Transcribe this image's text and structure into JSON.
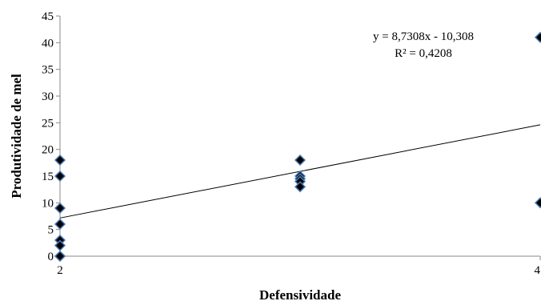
{
  "chart_data": {
    "type": "scatter",
    "title": "",
    "xlabel": "Defensividade",
    "ylabel": "Produtividade de mel",
    "xlim": [
      2,
      4
    ],
    "ylim": [
      0,
      45
    ],
    "x_ticks": [
      2,
      4
    ],
    "x_tick_labels": [
      "2",
      "4"
    ],
    "y_ticks": [
      0,
      5,
      10,
      15,
      20,
      25,
      30,
      35,
      40,
      45
    ],
    "grid": false,
    "legend": "none",
    "colors": {
      "marker_fill": "#000000",
      "marker_edge": "#4a7ab5",
      "trendline": "#000000",
      "axis": "#888888"
    },
    "series": [
      {
        "x": [
          2,
          2,
          2,
          2,
          2,
          2,
          2,
          2,
          3,
          3,
          3,
          3,
          3,
          4,
          4
        ],
        "y": [
          18,
          15,
          9,
          6,
          3,
          2,
          0,
          0,
          18,
          15,
          14.5,
          14,
          13,
          41,
          10
        ]
      }
    ],
    "trendline": {
      "slope": 8.7308,
      "intercept": -10.308
    },
    "annotations": {
      "equation": "y = 8,7308x - 10,308",
      "r_squared": "R² = 0,4208"
    }
  }
}
